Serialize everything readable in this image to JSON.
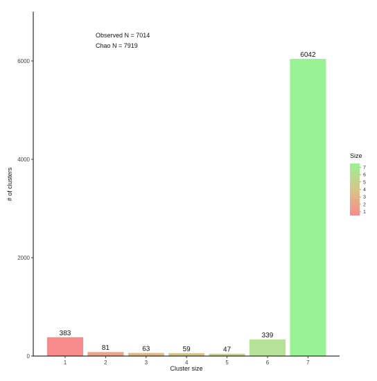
{
  "chart_data": {
    "type": "bar",
    "title": "",
    "xlabel": "Cluster size",
    "ylabel": "# of clusters",
    "categories": [
      "1",
      "2",
      "3",
      "4",
      "5",
      "6",
      "7"
    ],
    "values": [
      383,
      81,
      63,
      59,
      47,
      339,
      6042
    ],
    "data_labels": [
      "383",
      "81",
      "63",
      "59",
      "47",
      "339",
      "6042"
    ],
    "ylim": [
      0,
      7000
    ],
    "y_ticks": [
      0,
      2000,
      4000,
      6000
    ],
    "y_tick_labels": [
      "0",
      "2000",
      "4000",
      "6000"
    ],
    "bar_colors": [
      "#f78b8b",
      "#e9a487",
      "#dcb886",
      "#d0c586",
      "#c6d184",
      "#b5e296",
      "#99f294"
    ],
    "annotations": [
      "Observed N = 7014",
      "Chao N = 7919"
    ],
    "grid": false,
    "legend": {
      "title": "Size",
      "placement": "right",
      "labels": [
        "7",
        "6",
        "5",
        "4",
        "3",
        "2",
        "1"
      ],
      "gradient_top": "#99f294",
      "gradient_mid": "#d6c688",
      "gradient_bottom": "#f78b8b"
    }
  }
}
